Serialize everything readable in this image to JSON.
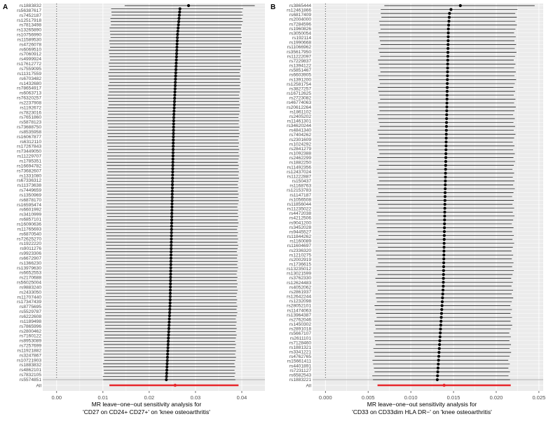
{
  "panels": [
    {
      "label": "A",
      "xlabel_line1": "MR leave−one−out sensitivity analysis for",
      "xlabel_line2": "'CD27 on CD24+ CD27+' on 'knee osteoarthritis'"
    },
    {
      "label": "B",
      "xlabel_line1": "MR leave−one−out sensitivity analysis for",
      "xlabel_line2": "'CD33 on CD33dim HLA DR−' on 'knee osteoarthritis'"
    }
  ],
  "colors": {
    "panel_background": "#ebebeb",
    "gridline": "#ffffff",
    "point": "#000000",
    "ci_line": "#000000",
    "overall_point": "#e8262b",
    "overall_ci": "#e8262b",
    "reference_line": "#444444"
  },
  "chart_data": [
    {
      "type": "forest",
      "panel": "A",
      "title": "",
      "xlabel": "MR leave−one−out sensitivity analysis for 'CD27 on CD24+ CD27+' on 'knee osteoarthritis'",
      "ylabel": "",
      "xlim": [
        -0.003,
        0.045
      ],
      "xticks": [
        "0.00",
        "0.01",
        "0.02",
        "0.03",
        "0.04"
      ],
      "xtick_values": [
        0.0,
        0.01,
        0.02,
        0.03,
        0.04
      ],
      "grid": true,
      "reference_line_x": 0,
      "n_snps": 118,
      "snp_labels_visible": [
        "rs1883832",
        "rs56387617",
        "rs7452187",
        "rs12517918",
        "rs7813498",
        "rs13265890",
        "rs10756990",
        "rs11589530",
        "rs4726078",
        "rs6069510",
        "rs7060912",
        "rs4999924",
        "rs17612772",
        "rs7559095",
        "rs11317559",
        "rs6703482",
        "rs1432680",
        "rs78654917",
        "rs6063713",
        "rs76320257",
        "rs2237908",
        "rs1192672",
        "rs7823016",
        "rs7651860",
        "rs5878123",
        "rs73688750",
        "rs8535958",
        "rs16067877",
        "rs6312110",
        "rs17267843",
        "rs73449050",
        "rs11229707",
        "rs1785351",
        "rs16694782",
        "rs73682607",
        "rs1331080",
        "rs67336312",
        "rs11373638",
        "rs7449659",
        "rs1350969",
        "rs6878170",
        "rs16595474",
        "rs6601992",
        "rs3410999",
        "rs6857101",
        "rs16090636",
        "rs11765693",
        "rs6870540",
        "rs72625270",
        "rs1922220",
        "rs9011276",
        "rs9923306",
        "rs6672907",
        "rs1366230",
        "rs13979630",
        "rs6652553",
        "rs2170688",
        "rs56025004",
        "rs9883240",
        "rs2433050",
        "rs11707440",
        "rs17347439",
        "rs8775695",
        "rs5529787",
        "rs6222608",
        "rs1189498",
        "rs7865996",
        "rs2800462",
        "rs7160122",
        "rs8953089",
        "rs7257699",
        "rs11921882",
        "rs3247867",
        "rs10721903",
        "rs1883832",
        "rs4862101",
        "rs7832105",
        "rs5574851"
      ],
      "estimates_order": "top_to_bottom",
      "estimate_first": 0.0285,
      "estimate_after_first_drop": 0.0267,
      "estimate_middle": 0.0248,
      "estimate_last": 0.0237,
      "ci_lower_first": 0.0147,
      "ci_upper_first": 0.0428,
      "ci_lower_typical": 0.0109,
      "ci_upper_typical": 0.0393,
      "overall": {
        "label": "All",
        "estimate": 0.0256,
        "ci_lower": 0.0114,
        "ci_upper": 0.0393
      }
    },
    {
      "type": "forest",
      "panel": "B",
      "title": "",
      "xlabel": "MR leave−one−out sensitivity analysis for 'CD33 on CD33dim HLA DR−' on 'knee osteoarthritis'",
      "ylabel": "",
      "xlim": [
        -0.0015,
        0.0255
      ],
      "xticks": [
        "0.000",
        "0.005",
        "0.010",
        "0.015",
        "0.020",
        "0.025"
      ],
      "xtick_values": [
        0.0,
        0.005,
        0.01,
        0.015,
        0.02,
        0.025
      ],
      "grid": true,
      "reference_line_x": 0,
      "n_snps": 97,
      "snp_labels_visible": [
        "rs3865444",
        "rs12461866",
        "rs6817409",
        "rs2004000",
        "rs7284596",
        "rs1960826",
        "rs3050054",
        "rs192114",
        "rs1990668",
        "rs11066962",
        "rs35617950",
        "rs11222097",
        "rs7229837",
        "rs1394122",
        "rs5851467",
        "rs6603905",
        "rs1391200",
        "rs12581754",
        "rs3827257",
        "rs16712625",
        "rs2723082",
        "rs46774063",
        "rs20612264",
        "rs1861102",
        "rs2405202",
        "rs11461301",
        "rs34620244",
        "rs4841340",
        "rs7404262",
        "rs2301609",
        "rs1024292",
        "rs2841279",
        "rs1092388",
        "rs2462299",
        "rs1882250",
        "rs11492356",
        "rs12437024",
        "rs11222887",
        "rs150437",
        "rs1168763",
        "rs12153783",
        "rs1147187",
        "rs1056508",
        "rs11856044",
        "rs11235022",
        "rs4472038",
        "rs4212506",
        "rs9041200",
        "rs3452028",
        "rs9445527",
        "rs11844262",
        "rs1160089",
        "rs11604697",
        "rs2336320",
        "rs1210275",
        "rs2002919",
        "rs1736615",
        "rs13235012",
        "rs13021599",
        "rs3762330",
        "rs12624483",
        "rs4052062",
        "rs2861937",
        "rs12642244",
        "rs1232098",
        "rs28052101",
        "rs11474063",
        "rs13964387",
        "rs2762046",
        "rs1450302",
        "rs2891018",
        "rs5667107",
        "rs2611101",
        "rs7128460",
        "rs1881321",
        "rs3341221",
        "rs4762765",
        "rs15661411",
        "rs4401891",
        "rs7231127",
        "rs6582543",
        "rs1883221"
      ],
      "estimates_order": "top_to_bottom",
      "estimate_first": 0.0158,
      "estimate_second": 0.0147,
      "estimate_middle": 0.0141,
      "estimate_last": 0.0131,
      "ci_lower_first": 0.0069,
      "ci_upper_first": 0.0245,
      "ci_lower_typical": 0.0062,
      "ci_upper_typical": 0.0221,
      "overall": {
        "label": "All",
        "estimate": 0.0139,
        "ci_lower": 0.0061,
        "ci_upper": 0.0217
      }
    }
  ]
}
